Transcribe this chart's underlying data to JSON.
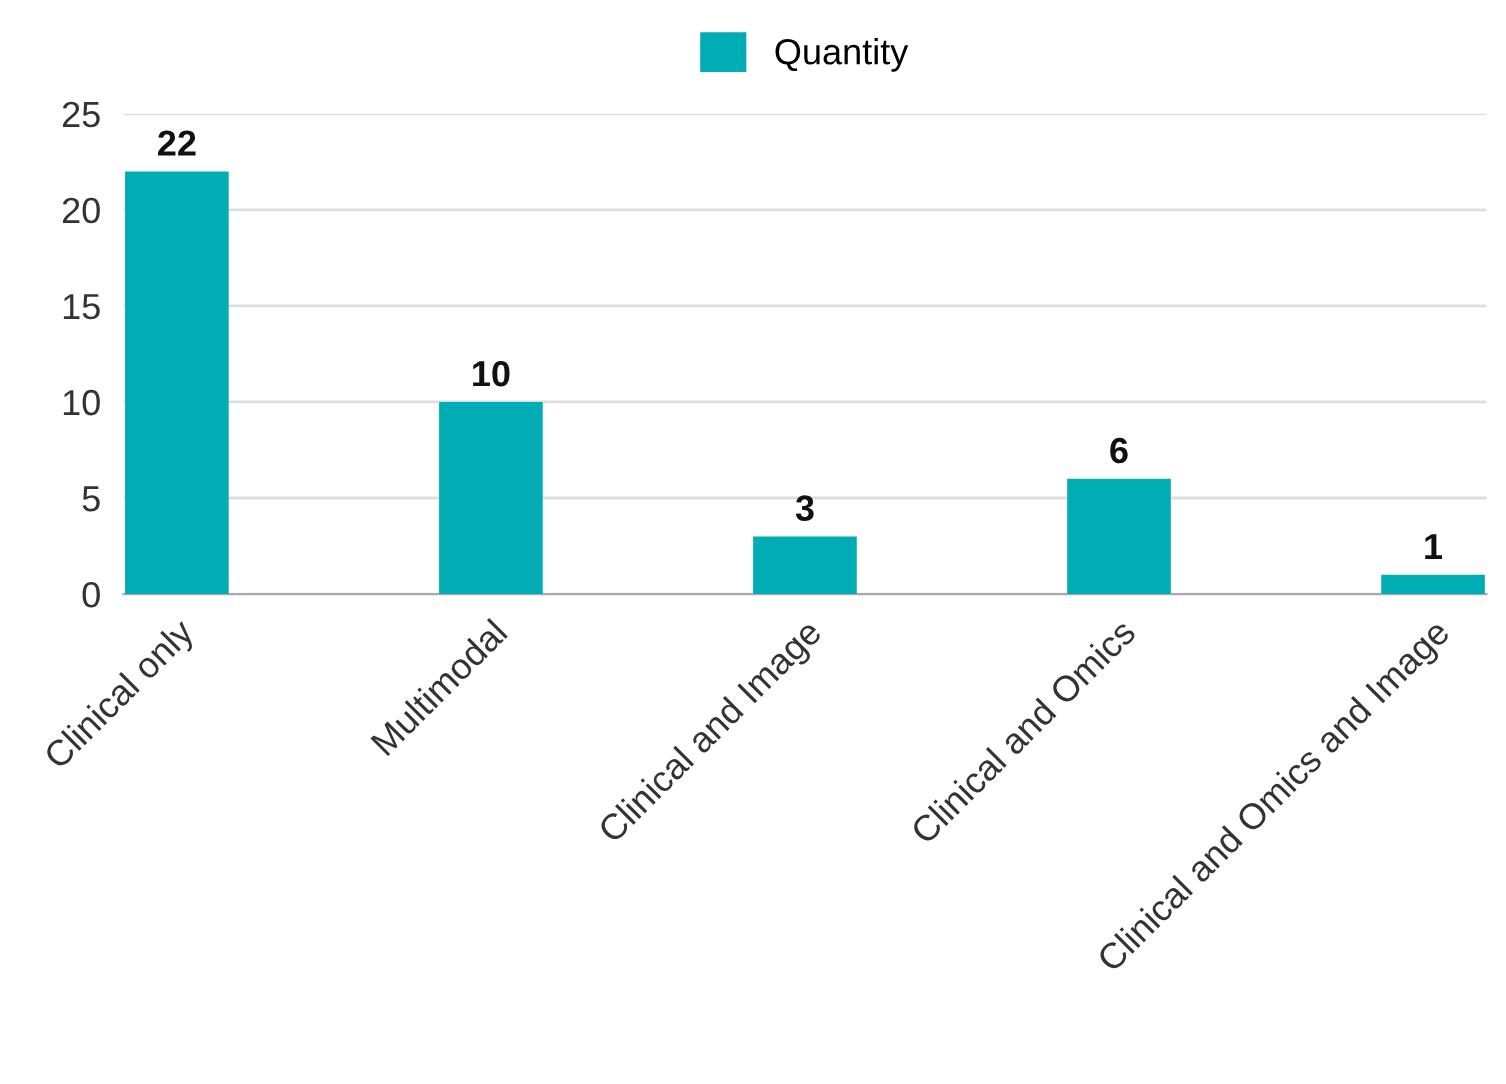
{
  "chart_data": {
    "type": "bar",
    "categories": [
      "Clinical only",
      "Multimodal",
      "Clinical and Image",
      "Clinical and Omics",
      "Clinical and Omics and Image"
    ],
    "series": [
      {
        "name": "Quantity",
        "color": "#00adb5",
        "values": [
          22,
          10,
          3,
          6,
          1
        ]
      }
    ],
    "ylim": [
      0,
      25
    ],
    "yticks": [
      0,
      5,
      10,
      15,
      20,
      25
    ],
    "grid": "y",
    "legend": "top",
    "data_labels": true
  }
}
